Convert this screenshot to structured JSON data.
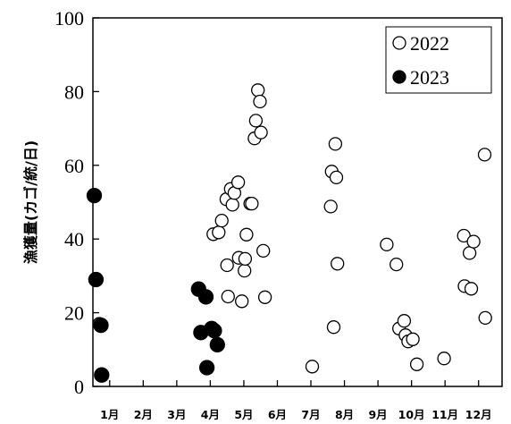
{
  "chart_data": {
    "type": "scatter",
    "title": "",
    "xlabel": "",
    "ylabel": "漁獲量(カゴ/統/日)",
    "ylim": [
      0,
      100
    ],
    "yticks": [
      0,
      20,
      40,
      60,
      80,
      100
    ],
    "xlim": [
      0.5,
      12.7
    ],
    "xticks": [
      1,
      2,
      3,
      4,
      5,
      6,
      7,
      8,
      9,
      10,
      11,
      12
    ],
    "xticklabels": [
      "1月",
      "2月",
      "3月",
      "4月",
      "5月",
      "6月",
      "7月",
      "8月",
      "9月",
      "10月",
      "11月",
      "12月"
    ],
    "grid": false,
    "legend_position": "top-right",
    "series": [
      {
        "name": "2022",
        "marker": "open-circle",
        "color": "#000000",
        "points": [
          [
            0.69,
            17.0
          ],
          [
            4.09,
            41.3
          ],
          [
            4.25,
            41.8
          ],
          [
            4.34,
            45.0
          ],
          [
            4.48,
            50.8
          ],
          [
            4.5,
            32.9
          ],
          [
            4.53,
            24.4
          ],
          [
            4.61,
            53.6
          ],
          [
            4.66,
            49.3
          ],
          [
            4.72,
            52.5
          ],
          [
            4.83,
            55.4
          ],
          [
            4.85,
            34.9
          ],
          [
            4.94,
            23.1
          ],
          [
            5.02,
            31.4
          ],
          [
            5.04,
            34.6
          ],
          [
            5.08,
            41.2
          ],
          [
            5.19,
            49.6
          ],
          [
            5.24,
            49.6
          ],
          [
            5.32,
            67.3
          ],
          [
            5.36,
            72.1
          ],
          [
            5.42,
            80.4
          ],
          [
            5.48,
            77.3
          ],
          [
            5.51,
            68.9
          ],
          [
            5.58,
            36.8
          ],
          [
            5.63,
            24.2
          ],
          [
            7.04,
            5.4
          ],
          [
            7.59,
            48.8
          ],
          [
            7.62,
            58.3
          ],
          [
            7.68,
            16.1
          ],
          [
            7.73,
            65.8
          ],
          [
            7.76,
            56.7
          ],
          [
            7.79,
            33.3
          ],
          [
            9.26,
            38.5
          ],
          [
            9.55,
            33.1
          ],
          [
            9.63,
            15.7
          ],
          [
            9.78,
            17.8
          ],
          [
            9.82,
            13.9
          ],
          [
            9.9,
            12.2
          ],
          [
            10.04,
            12.8
          ],
          [
            10.16,
            6.0
          ],
          [
            10.97,
            7.6
          ],
          [
            11.56,
            40.9
          ],
          [
            11.58,
            27.2
          ],
          [
            11.73,
            36.2
          ],
          [
            11.78,
            26.5
          ],
          [
            11.85,
            39.3
          ],
          [
            12.18,
            62.9
          ],
          [
            12.2,
            18.6
          ]
        ]
      },
      {
        "name": "2023",
        "marker": "filled-circle",
        "color": "#000000",
        "points": [
          [
            0.54,
            51.8
          ],
          [
            0.59,
            29.0
          ],
          [
            0.74,
            16.6
          ],
          [
            0.76,
            3.1
          ],
          [
            3.65,
            26.4
          ],
          [
            3.72,
            14.6
          ],
          [
            3.87,
            24.3
          ],
          [
            3.9,
            5.1
          ],
          [
            4.04,
            15.7
          ],
          [
            4.12,
            15.1
          ],
          [
            4.21,
            11.3
          ]
        ]
      }
    ]
  }
}
